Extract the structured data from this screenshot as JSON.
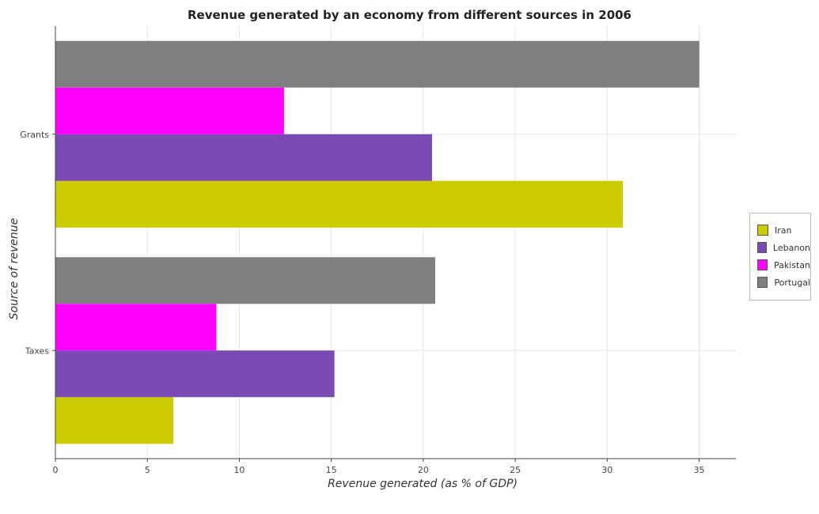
{
  "chart_data": {
    "type": "bar",
    "orientation": "horizontal",
    "title": "Revenue generated by an economy from different sources in 2006",
    "xlabel": "Revenue generated (as % of GDP)",
    "ylabel": "Source of revenue",
    "categories": [
      "Grants",
      "Taxes"
    ],
    "series": [
      {
        "name": "Iran",
        "color": "#cccc00",
        "values": [
          30.85,
          6.41
        ]
      },
      {
        "name": "Lebanon",
        "color": "#7b4ab3",
        "values": [
          20.48,
          15.17
        ]
      },
      {
        "name": "Pakistan",
        "color": "#ff00ff",
        "values": [
          12.43,
          8.75
        ]
      },
      {
        "name": "Portugal",
        "color": "#7f7f7f",
        "values": [
          35.01,
          20.65
        ]
      }
    ],
    "xlim": [
      0,
      37
    ],
    "xticks": [
      0,
      5,
      10,
      15,
      20,
      25,
      30,
      35
    ],
    "xtick_labels": [
      "0",
      "5",
      "10",
      "15",
      "20",
      "25",
      "30",
      "35"
    ],
    "grid": true,
    "legend_position": "right"
  }
}
